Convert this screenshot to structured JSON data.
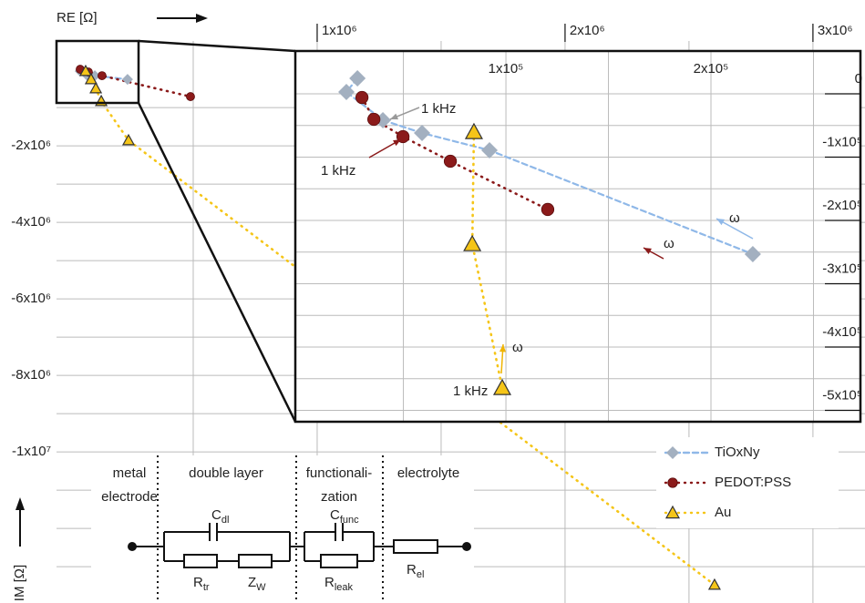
{
  "chart_data": [
    {
      "type": "scatter",
      "x_label": "RE [Ω]",
      "y_label": "IM [Ω]",
      "xlim": [
        -51500,
        3210000
      ],
      "ylim": [
        -13950000,
        740000
      ],
      "xticks": [
        {
          "value": 1000000,
          "label": "1x10⁶"
        },
        {
          "value": 2000000,
          "label": "2x10⁶"
        },
        {
          "value": 3000000,
          "label": "3x10⁶"
        }
      ],
      "yticks": [
        {
          "value": -2000000,
          "label": "-2x10⁶"
        },
        {
          "value": -4000000,
          "label": "-4x10⁶"
        },
        {
          "value": -6000000,
          "label": "-6x10⁶"
        },
        {
          "value": -8000000,
          "label": "-8x10⁶"
        },
        {
          "value": -10000000,
          "label": "-1x10⁷"
        }
      ],
      "minor_xticks": [
        500000,
        1500000,
        2500000
      ],
      "minor_yticks": [
        -1000000,
        -3000000,
        -5000000,
        -7000000,
        -9000000,
        -11000000,
        -12000000,
        -13000000
      ],
      "grid": true,
      "legend": "lower right",
      "series": [
        {
          "name": "TiOxNy",
          "color": "#8fb8e8",
          "marker": "diamond",
          "marker_color": "#a3b0c0",
          "line_style": "dashed",
          "x": [
            44000,
            70000,
            103000,
            235000
          ],
          "values": [
            -48000,
            -143000,
            -167000,
            -262000
          ]
        },
        {
          "name": "PEDOT:PSS",
          "color": "#8b1a1a",
          "marker": "circle",
          "marker_color": "#8b1a1a",
          "line_style": "dotted",
          "x": [
            44000,
            77000,
            132000,
            489000
          ],
          "values": [
            0,
            -71000,
            -167000,
            -714000
          ]
        },
        {
          "name": "Au",
          "color": "#f5c518",
          "marker": "triangle",
          "marker_color": "#f5c518",
          "line_style": "dotted",
          "x": [
            66000,
            88000,
            107000,
            129000,
            239000,
            2603000
          ],
          "values": [
            -48000,
            -262000,
            -500000,
            -833000,
            -1857000,
            -13476000
          ]
        }
      ]
    },
    {
      "type": "scatter",
      "xlim": [
        -2700,
        272900
      ],
      "ylim": [
        -518000,
        67600
      ],
      "xticks": [
        {
          "value": 100000,
          "label": "1x10⁵"
        },
        {
          "value": 200000,
          "label": "2x10⁵"
        }
      ],
      "yticks": [
        0,
        {
          "value": -100000,
          "label": "-1x10⁵"
        },
        {
          "value": -200000,
          "label": "-2x10⁵"
        },
        {
          "value": -300000,
          "label": "-3x10⁵"
        },
        {
          "value": -400000,
          "label": "-4x10⁵"
        },
        {
          "value": -500000,
          "label": "-5x10⁵"
        }
      ],
      "minor_xticks": [
        50000,
        150000,
        250000
      ],
      "minor_yticks": [
        -50000,
        -150000,
        -250000,
        -350000,
        -450000
      ],
      "grid": true,
      "series": [
        {
          "name": "TiOxNy",
          "color": "#8fb8e8",
          "marker": "diamond",
          "marker_color": "#a3b0c0",
          "line_style": "dashed",
          "x": [
            27600,
            22200,
            40000,
            59100,
            92000,
            220400
          ],
          "values": [
            24500,
            2900,
            -41700,
            -61900,
            -89200,
            -253200
          ]
        },
        {
          "name": "PEDOT:PSS",
          "color": "#8b1a1a",
          "marker": "circle",
          "marker_color": "#8b1a1a",
          "line_style": "dotted",
          "x": [
            29800,
            35600,
            49800,
            72900,
            120400
          ],
          "values": [
            -5800,
            -40300,
            -67600,
            -106500,
            -182700
          ]
        },
        {
          "name": "Au",
          "color": "#f5c518",
          "marker": "triangle",
          "marker_color": "#f5c518",
          "line_style": "dotted",
          "x": [
            84400,
            83600,
            98200
          ],
          "values": [
            -60400,
            -237400,
            -464700
          ]
        }
      ],
      "annotations": [
        {
          "text": "1 kHz",
          "color": "#9a9a9a"
        },
        {
          "text": "1 kHz",
          "color": "#8b1a1a"
        },
        {
          "text": "1 kHz",
          "color": "#f0b400"
        },
        {
          "text": "ω",
          "color": "#8fb8e8"
        },
        {
          "text": "ω",
          "color": "#8b1a1a"
        },
        {
          "text": "ω",
          "color": "#f0b400"
        }
      ]
    }
  ],
  "circuit": {
    "regions": [
      [
        "metal",
        "electrode"
      ],
      [
        "double layer"
      ],
      [
        "functionali-",
        "zation"
      ],
      [
        "electrolyte"
      ]
    ],
    "elements": [
      {
        "symbol": "C",
        "subscript": "dl"
      },
      {
        "symbol": "R",
        "subscript": "tr"
      },
      {
        "symbol": "Z",
        "subscript": "W"
      },
      {
        "symbol": "C",
        "subscript": "func"
      },
      {
        "symbol": "R",
        "subscript": "leak"
      },
      {
        "symbol": "R",
        "subscript": "el"
      }
    ]
  }
}
